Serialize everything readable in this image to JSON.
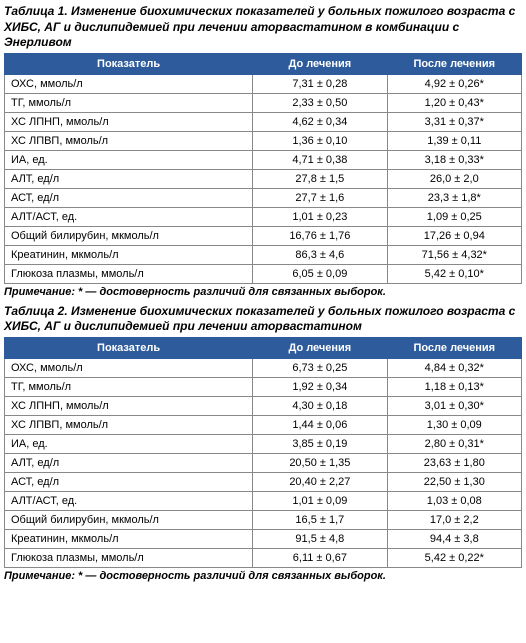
{
  "table1": {
    "title": "Таблица 1. Изменение биохимических показателей у больных пожилого возраста с ХИБС, АГ и дислипидемией при лечении аторвастатином в комбинации с Энерливом",
    "headers": {
      "indicator": "Показатель",
      "before": "До лечения",
      "after": "После лечения"
    },
    "rows": [
      {
        "indicator": "ОХС, ммоль/л",
        "before": "7,31 ± 0,28",
        "after": "4,92 ± 0,26*"
      },
      {
        "indicator": "ТГ, ммоль/л",
        "before": "2,33 ± 0,50",
        "after": "1,20 ± 0,43*"
      },
      {
        "indicator": "ХС ЛПНП, ммоль/л",
        "before": "4,62 ± 0,34",
        "after": "3,31 ± 0,37*"
      },
      {
        "indicator": "ХС ЛПВП, ммоль/л",
        "before": "1,36 ± 0,10",
        "after": "1,39 ± 0,11"
      },
      {
        "indicator": "ИА, ед.",
        "before": "4,71 ± 0,38",
        "after": "3,18 ± 0,33*"
      },
      {
        "indicator": "АЛТ, ед/л",
        "before": "27,8 ± 1,5",
        "after": "26,0 ± 2,0"
      },
      {
        "indicator": "АСТ, ед/л",
        "before": "27,7 ± 1,6",
        "after": "23,3 ± 1,8*"
      },
      {
        "indicator": "АЛТ/АСТ, ед.",
        "before": "1,01 ± 0,23",
        "after": "1,09 ± 0,25"
      },
      {
        "indicator": "Общий билирубин, мкмоль/л",
        "before": "16,76 ± 1,76",
        "after": "17,26 ± 0,94"
      },
      {
        "indicator": "Креатинин, мкмоль/л",
        "before": "86,3 ± 4,6",
        "after": "71,56 ± 4,32*"
      },
      {
        "indicator": "Глюкоза плазмы, ммоль/л",
        "before": "6,05 ± 0,09",
        "after": "5,42 ± 0,10*"
      }
    ],
    "note": "Примечание: * — достоверность различий для связанных выборок."
  },
  "table2": {
    "title": "Таблица 2. Изменение биохимических показателей у больных пожилого возраста с ХИБС, АГ и дислипидемией при лечении аторвастатином",
    "headers": {
      "indicator": "Показатель",
      "before": "До лечения",
      "after": "После лечения"
    },
    "rows": [
      {
        "indicator": "ОХС, ммоль/л",
        "before": "6,73 ± 0,25",
        "after": "4,84 ± 0,32*"
      },
      {
        "indicator": "ТГ, ммоль/л",
        "before": "1,92 ± 0,34",
        "after": "1,18 ± 0,13*"
      },
      {
        "indicator": "ХС ЛПНП, ммоль/л",
        "before": "4,30 ± 0,18",
        "after": "3,01 ± 0,30*"
      },
      {
        "indicator": "ХС ЛПВП, ммоль/л",
        "before": "1,44 ± 0,06",
        "after": "1,30 ± 0,09"
      },
      {
        "indicator": "ИА, ед.",
        "before": "3,85 ± 0,19",
        "after": "2,80 ± 0,31*"
      },
      {
        "indicator": "АЛТ, ед/л",
        "before": "20,50 ± 1,35",
        "after": "23,63 ± 1,80"
      },
      {
        "indicator": "АСТ, ед/л",
        "before": "20,40 ± 2,27",
        "after": "22,50 ± 1,30"
      },
      {
        "indicator": "АЛТ/АСТ, ед.",
        "before": "1,01 ± 0,09",
        "after": "1,03 ± 0,08"
      },
      {
        "indicator": "Общий билирубин, мкмоль/л",
        "before": "16,5 ± 1,7",
        "after": "17,0 ± 2,2"
      },
      {
        "indicator": "Креатинин, мкмоль/л",
        "before": "91,5 ± 4,8",
        "after": "94,4 ± 3,8"
      },
      {
        "indicator": "Глюкоза плазмы, ммоль/л",
        "before": "6,11 ± 0,67",
        "after": "5,42 ± 0,22*"
      }
    ],
    "note": "Примечание: * — достоверность различий для связанных выборок."
  },
  "styling": {
    "header_bg": "#2d5b9c",
    "header_color": "#ffffff",
    "border_color": "#888888",
    "text_color": "#000000",
    "title_fontsize": 12,
    "cell_fontsize": 11,
    "note_fontsize": 11
  }
}
